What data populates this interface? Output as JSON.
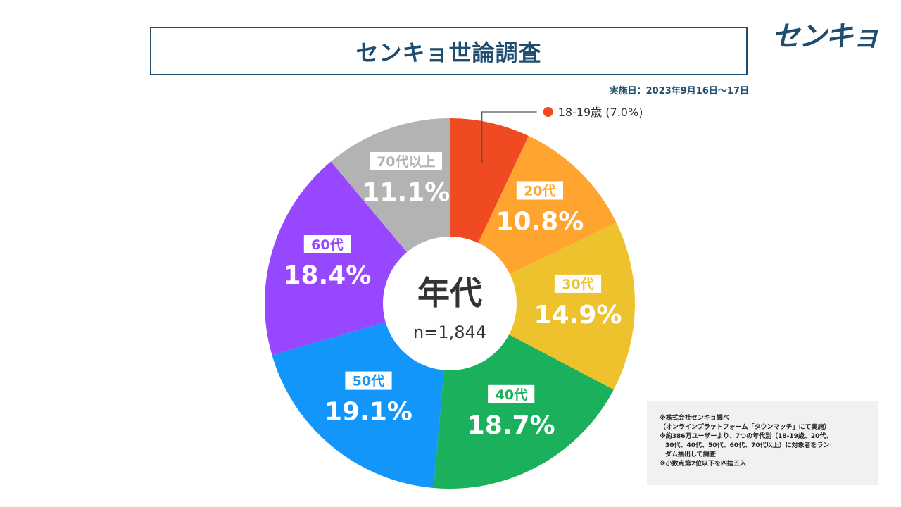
{
  "header": {
    "title": "センキョ世論調査",
    "logo_text": "センキョ",
    "date_text": "実施日：2023年9月16日〜17日"
  },
  "chart_data": {
    "type": "pie",
    "donut": true,
    "center_label": "年代",
    "center_sublabel": "n=1,844",
    "slices": [
      {
        "label": "18-19歳",
        "value": 7.0,
        "value_text": "7.0%",
        "color": "#f04a23",
        "label_style": "legend",
        "legend_text": "18-19歳 (7.0%)"
      },
      {
        "label": "20代",
        "value": 10.8,
        "value_text": "10.8%",
        "color": "#ffa42e",
        "label_style": "inside"
      },
      {
        "label": "30代",
        "value": 14.9,
        "value_text": "14.9%",
        "color": "#eec22c",
        "label_style": "inside"
      },
      {
        "label": "40代",
        "value": 18.7,
        "value_text": "18.7%",
        "color": "#1bb05b",
        "label_style": "inside"
      },
      {
        "label": "50代",
        "value": 19.1,
        "value_text": "19.1%",
        "color": "#1396fa",
        "label_style": "inside"
      },
      {
        "label": "60代",
        "value": 18.4,
        "value_text": "18.4%",
        "color": "#9747fd",
        "label_style": "inside"
      },
      {
        "label": "70代以上",
        "value": 11.1,
        "value_text": "11.1%",
        "color": "#b3b3b3",
        "label_style": "inside"
      }
    ]
  },
  "notes": [
    {
      "text": "※株式会社センキョ調べ",
      "indent": false
    },
    {
      "text": "（オンラインプラットフォーム「タウンマッチ」にて実施）",
      "indent": false
    },
    {
      "text": "※約386万ユーザーより、7つの年代別（18-19歳、20代、",
      "indent": false
    },
    {
      "text": "30代、40代、50代、60代、70代以上）に対象者をラン",
      "indent": true
    },
    {
      "text": "ダム抽出して調査",
      "indent": true
    },
    {
      "text": "※小数点第2位以下を四捨五入",
      "indent": false
    }
  ]
}
